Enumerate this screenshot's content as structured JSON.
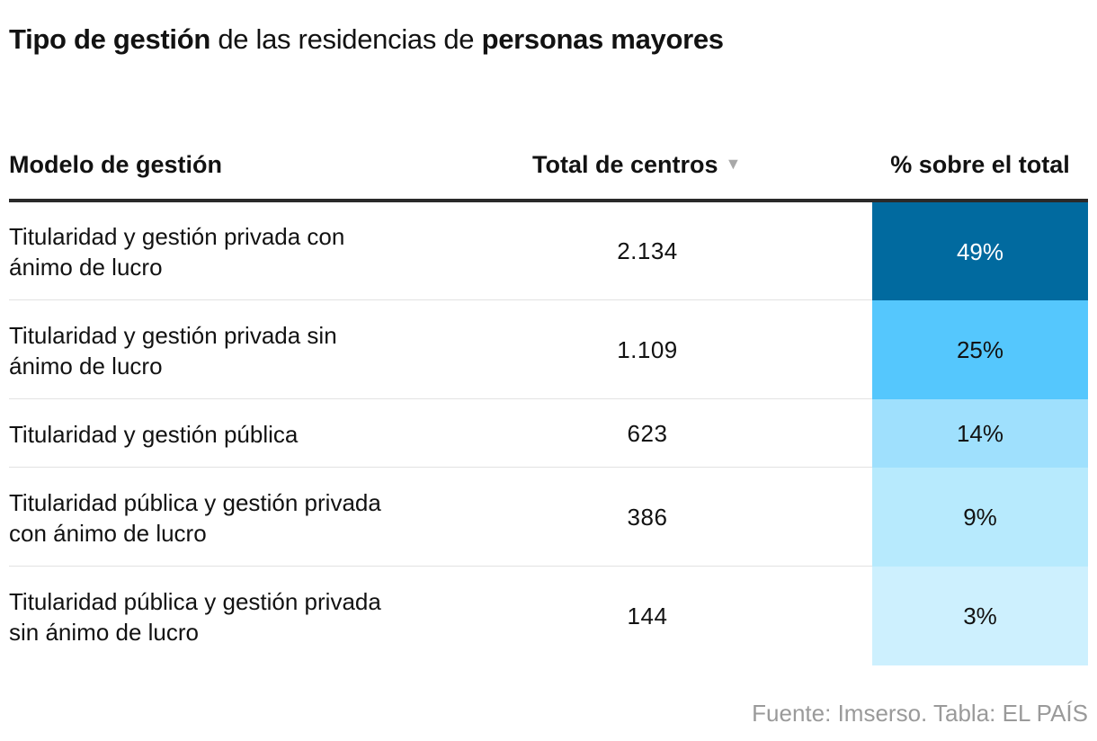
{
  "title": {
    "part1": "Tipo de gestión",
    "part2": " de las residencias de ",
    "part3": "personas mayores"
  },
  "header": {
    "model": "Modelo de gestión",
    "total": "Total de centros",
    "sort_icon": "▼",
    "pct": "% sobre el total"
  },
  "chart_data": {
    "type": "table",
    "title": "Tipo de gestión de las residencias de personas mayores",
    "columns": [
      "Modelo de gestión",
      "Total de centros",
      "% sobre el total"
    ],
    "rows": [
      {
        "model": "Titularidad y gestión privada con ánimo de lucro",
        "total": "2.134",
        "pct": "49%",
        "pct_value": 49,
        "color": "#016a9f"
      },
      {
        "model": "Titularidad y gestión privada sin ánimo de lucro",
        "total": "1.109",
        "pct": "25%",
        "pct_value": 25,
        "color": "#55c7fd"
      },
      {
        "model": "Titularidad y gestión pública",
        "total": "623",
        "pct": "14%",
        "pct_value": 14,
        "color": "#9fe0fd"
      },
      {
        "model": "Titularidad pública y gestión privada con ánimo de lucro",
        "total": "386",
        "pct": "9%",
        "pct_value": 9,
        "color": "#b7eafd"
      },
      {
        "model": "Titularidad pública y gestión privada sin ánimo de lucro",
        "total": "144",
        "pct": "3%",
        "pct_value": 3,
        "color": "#cdf0fe"
      }
    ]
  },
  "source": "Fuente: Imserso. Tabla: EL PAÍS"
}
